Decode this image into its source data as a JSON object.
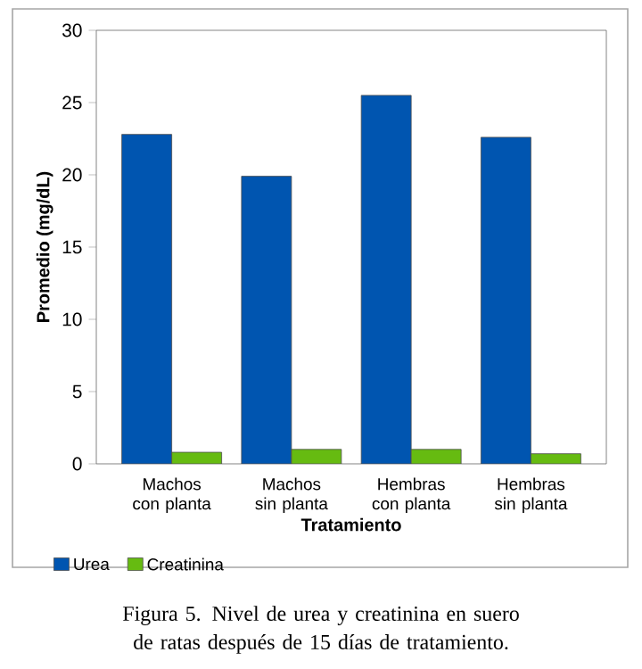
{
  "chart_data": {
    "type": "bar",
    "categories": [
      "Machos con planta",
      "Machos sin planta",
      "Hembras con planta",
      "Hembras sin planta"
    ],
    "xlabel": "Tratamiento",
    "ylabel": "Promedio (mg/dL)",
    "series": [
      {
        "name": "Urea",
        "color": "#0055b0",
        "values": [
          22.8,
          19.9,
          25.5,
          22.6
        ]
      },
      {
        "name": "Creatinina",
        "color": "#66bb11",
        "values": [
          0.8,
          1.0,
          1.0,
          0.7
        ]
      }
    ],
    "ylim": [
      0,
      30
    ],
    "yticks": [
      0,
      5,
      10,
      15,
      20,
      25,
      30
    ],
    "legend": "bottom left",
    "annotations": [
      "Figura 5. Nivel de urea y creatinina en suero de ratas después de 15 días de tratamiento."
    ]
  }
}
